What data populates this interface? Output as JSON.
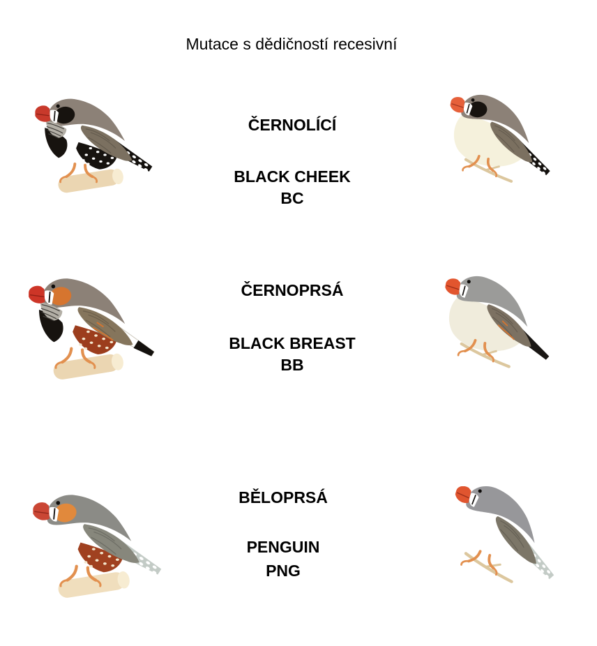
{
  "title": "Mutace s dědičností recesivní",
  "background_color": "#FFFFFF",
  "text_color": "#000000",
  "rows": [
    {
      "czech_name": "ČERNOLÍCÍ",
      "english_name": "BLACK CHEEK",
      "abbreviation": "BC",
      "left_bird": {
        "variant": "black-cheek-male",
        "perch": "branch",
        "rotate": 0,
        "colors": {
          "head": "#8C8177",
          "wing": "#7B7060",
          "body": "#FFFFFF",
          "beak": "#C8392B",
          "legs": "#E2904F",
          "perch": "#EBD6B2",
          "cheek": "#17130F",
          "breast": "#17130F",
          "flank": "#17130F",
          "flank_spots": "#FFFFFF",
          "tail_dark": "#14110E",
          "tail_light": "#FFFFFF",
          "throat": "#B3AFA6"
        },
        "features": {
          "cheek_patch": true,
          "throat_stripes": true,
          "breast_patch": true,
          "flank_band": true,
          "tail_style": "spotted",
          "tear_mark": true
        }
      },
      "right_bird": {
        "variant": "black-cheek-female",
        "perch": "twig",
        "rotate": 10,
        "colors": {
          "head": "#8C8177",
          "wing": "#7B7060",
          "body": "#F5F1DC",
          "beak": "#E6603A",
          "legs": "#E2904F",
          "perch": "#DCC79E",
          "cheek": "#17130F",
          "tail_dark": "#14110E",
          "tail_light": "#FFFFFF"
        },
        "features": {
          "cheek_patch": true,
          "throat_stripes": false,
          "breast_patch": false,
          "flank_band": false,
          "tail_style": "spotted",
          "tear_mark": true
        }
      }
    },
    {
      "czech_name": "ČERNOPRSÁ",
      "english_name": "BLACK BREAST",
      "abbreviation": "BB",
      "left_bird": {
        "variant": "black-breast-male",
        "perch": "branch",
        "rotate": 0,
        "colors": {
          "head": "#8C8177",
          "wing": "#85755C",
          "wing_streaks": "#D6752F",
          "body": "#FFFFFF",
          "beak": "#CD3527",
          "legs": "#E2904F",
          "perch": "#EBD6B2",
          "cheek": "#D6752F",
          "breast": "#17130F",
          "flank": "#9C3D1D",
          "flank_spots": "#F3E7CE",
          "tail_dark": "#14110E",
          "tail_light": "#FFFFFF",
          "throat": "#B3AFA6"
        },
        "features": {
          "cheek_patch": true,
          "throat_stripes": true,
          "breast_patch": true,
          "flank_band": true,
          "tail_style": "white-blacktip",
          "tear_mark": true
        }
      },
      "right_bird": {
        "variant": "black-breast-female",
        "perch": "twig",
        "rotate": 10,
        "colors": {
          "head": "#9B9B99",
          "wing": "#7C7162",
          "wing_streaks": "#D6752F",
          "body": "#F0ECDC",
          "beak": "#E2552E",
          "legs": "#E2904F",
          "perch": "#DCC79E",
          "tail_dark": "#1A1714",
          "tail_light": "#1A1714"
        },
        "features": {
          "cheek_patch": false,
          "throat_stripes": false,
          "breast_patch": false,
          "flank_band": false,
          "tail_style": "solid",
          "tear_mark": true
        }
      }
    },
    {
      "czech_name": "BĚLOPRSÁ",
      "english_name": "PENGUIN",
      "abbreviation": "PNG",
      "left_bird": {
        "variant": "penguin-male",
        "perch": "branch",
        "rotate": 0,
        "colors": {
          "head": "#8B8B86",
          "wing": "#87877C",
          "body": "#FFFFFF",
          "beak": "#CA4634",
          "legs": "#E2904F",
          "perch": "#F0DEBD",
          "cheek": "#E1893C",
          "flank": "#A04120",
          "flank_spots": "#F3E7CE",
          "tail_dark": "#C3CBC6",
          "tail_light": "#FFFFFF"
        },
        "features": {
          "cheek_patch": true,
          "throat_stripes": false,
          "breast_patch": false,
          "flank_band": true,
          "tail_style": "spotted",
          "tear_mark": true
        }
      },
      "right_bird": {
        "variant": "penguin-female",
        "perch": "twig",
        "rotate": 16,
        "colors": {
          "head": "#97979A",
          "wing": "#7C7668",
          "body": "#FFFFFF",
          "beak": "#E0552F",
          "legs": "#E2904F",
          "perch": "#DCC79E",
          "tail_dark": "#C3CBC6",
          "tail_light": "#FFFFFF"
        },
        "features": {
          "cheek_patch": false,
          "throat_stripes": false,
          "breast_patch": false,
          "flank_band": false,
          "tail_style": "spotted",
          "tear_mark": true
        }
      }
    }
  ]
}
